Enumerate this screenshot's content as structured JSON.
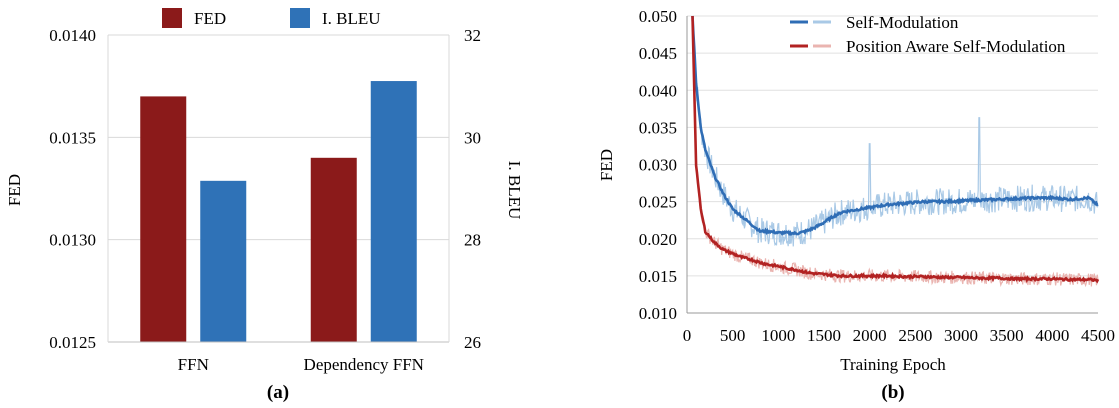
{
  "chart_data": [
    {
      "type": "bar",
      "panel_label": "(a)",
      "categories": [
        "FFN",
        "Dependency FFN"
      ],
      "series": [
        {
          "name": "FED",
          "axis": "left",
          "color": "#8B1A1A",
          "values": [
            0.0137,
            0.0134
          ]
        },
        {
          "name": "I. BLEU",
          "axis": "right",
          "color": "#2F72B7",
          "values": [
            29.15,
            31.1
          ]
        }
      ],
      "ylabel": "FED",
      "ylim": [
        0.0125,
        0.014
      ],
      "yticks": [
        "0.0125",
        "0.0130",
        "0.0135",
        "0.0140"
      ],
      "y2label": "I. BLEU",
      "y2lim": [
        26,
        32
      ],
      "y2ticks": [
        "26",
        "28",
        "30",
        "32"
      ],
      "grid": "horizontal",
      "legend": "top"
    },
    {
      "type": "line",
      "panel_label": "(b)",
      "xlabel": "Training Epoch",
      "ylabel": "FED",
      "xlim": [
        0,
        4500
      ],
      "ylim": [
        0.01,
        0.05
      ],
      "xticks": [
        "0",
        "500",
        "1000",
        "1500",
        "2000",
        "2500",
        "3000",
        "3500",
        "4000",
        "4500"
      ],
      "yticks": [
        "0.010",
        "0.015",
        "0.020",
        "0.025",
        "0.030",
        "0.035",
        "0.040",
        "0.045",
        "0.050"
      ],
      "grid": "horizontal",
      "legend": "top-right",
      "series": [
        {
          "name": "Self-Modulation",
          "color": "#2F6DB5",
          "raw_color": "#A9C9E6",
          "x": [
            60,
            100,
            150,
            200,
            300,
            400,
            500,
            600,
            700,
            800,
            900,
            1000,
            1100,
            1200,
            1300,
            1400,
            1500,
            1600,
            1700,
            1800,
            1900,
            2000,
            2200,
            2400,
            2600,
            2800,
            3000,
            3200,
            3400,
            3600,
            3800,
            4000,
            4200,
            4400,
            4500
          ],
          "y": [
            0.05,
            0.041,
            0.035,
            0.032,
            0.0285,
            0.026,
            0.024,
            0.023,
            0.022,
            0.021,
            0.021,
            0.0208,
            0.0208,
            0.0207,
            0.021,
            0.0215,
            0.0222,
            0.023,
            0.0236,
            0.0238,
            0.024,
            0.0242,
            0.0246,
            0.0248,
            0.025,
            0.025,
            0.0251,
            0.0252,
            0.0253,
            0.0254,
            0.0255,
            0.0255,
            0.0253,
            0.0255,
            0.0245
          ]
        },
        {
          "name": "Position Aware Self-Modulation",
          "color": "#B22222",
          "raw_color": "#EAB4B0",
          "x": [
            60,
            100,
            150,
            200,
            300,
            400,
            500,
            600,
            700,
            800,
            900,
            1000,
            1100,
            1200,
            1300,
            1400,
            1500,
            1600,
            1700,
            1800,
            1900,
            2000,
            2200,
            2400,
            2600,
            2800,
            3000,
            3200,
            3400,
            3600,
            3800,
            4000,
            4200,
            4400,
            4500
          ],
          "y": [
            0.05,
            0.03,
            0.024,
            0.021,
            0.0195,
            0.0185,
            0.018,
            0.0175,
            0.0172,
            0.0168,
            0.0165,
            0.0163,
            0.016,
            0.0158,
            0.0155,
            0.0153,
            0.0152,
            0.0151,
            0.015,
            0.015,
            0.015,
            0.015,
            0.015,
            0.0149,
            0.0149,
            0.0148,
            0.0148,
            0.0147,
            0.0147,
            0.0146,
            0.0146,
            0.0146,
            0.0145,
            0.0145,
            0.0144
          ]
        }
      ]
    }
  ]
}
